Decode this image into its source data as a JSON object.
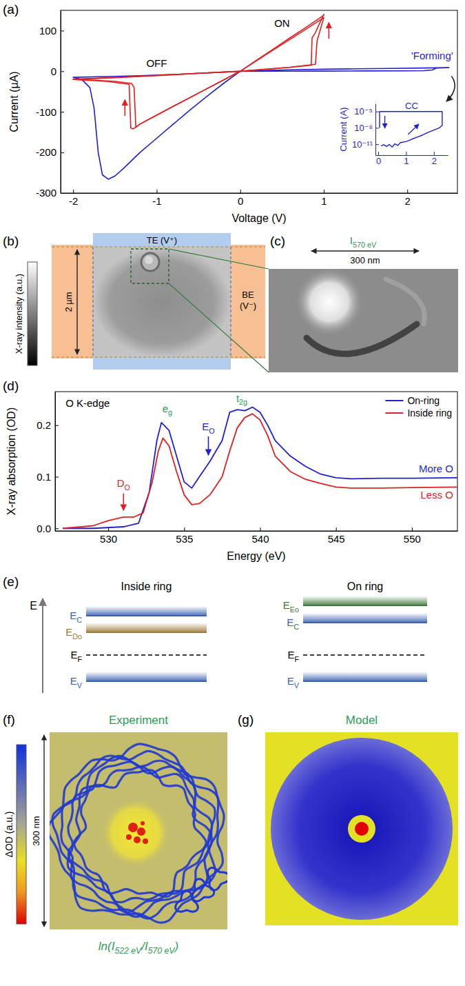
{
  "chart_data": [
    {
      "panel": "(a)",
      "type": "line",
      "x_label": "Voltage (V)",
      "y_label": "Current (µA)",
      "xlim": [
        -2.15,
        2.6
      ],
      "ylim": [
        -300,
        150
      ],
      "xticks": [
        -2,
        -1,
        0,
        1,
        2
      ],
      "yticks": [
        -300,
        -200,
        -100,
        0,
        100
      ],
      "series": [
        {
          "color": "#1f1fd6",
          "x": [
            0,
            0.5,
            1.0,
            1.5,
            2.0,
            2.2,
            2.3,
            2.35,
            2.5,
            2.2,
            1.8,
            1.4,
            1.0,
            0.6,
            0.2,
            0,
            -0.2,
            -0.4,
            -0.6,
            -0.8,
            -1.0,
            -1.2,
            -1.4,
            -1.5,
            -1.58,
            -1.65,
            -1.7,
            -1.75,
            -1.8,
            -1.9,
            -2.0,
            -1.6,
            -1.2,
            -0.8,
            -0.4,
            0
          ],
          "values": [
            0,
            0.2,
            0.4,
            0.7,
            1,
            1.5,
            3,
            8,
            9,
            8,
            7,
            6,
            5,
            3.5,
            1.5,
            0,
            -30,
            -62,
            -95,
            -130,
            -165,
            -200,
            -240,
            -258,
            -266,
            -255,
            -200,
            -90,
            -40,
            -20,
            -15,
            -13,
            -11,
            -8,
            -4,
            0
          ]
        },
        {
          "color": "#e02020",
          "x": [
            0,
            0.2,
            0.4,
            0.6,
            0.8,
            0.85,
            0.86,
            0.9,
            0.95,
            1.0,
            1.0,
            0.8,
            0.6,
            0.4,
            0.2,
            0,
            -0.25,
            -0.5,
            -0.75,
            -1.0,
            -1.2,
            -1.25,
            -1.27,
            -1.3,
            -1.5,
            -1.75,
            -2.0,
            -1.5,
            -1.0,
            -0.5,
            0
          ],
          "values": [
            0,
            3,
            6,
            10,
            14,
            15,
            82,
            95,
            118,
            140,
            138,
            110,
            83,
            55,
            28,
            0,
            -27,
            -54,
            -81,
            -108,
            -130,
            -138,
            -40,
            -30,
            -25,
            -22,
            -20,
            -16,
            -11,
            -5,
            0
          ]
        },
        {
          "color": "#e02020",
          "x": [
            0,
            0.3,
            0.6,
            0.9,
            0.92,
            1.0,
            0.7,
            0.4,
            0,
            -0.4,
            -0.8,
            -1.2,
            -1.28,
            -1.31,
            -1.33,
            -1.6,
            -2.0,
            -1.0,
            0
          ],
          "values": [
            0,
            5,
            10,
            17,
            75,
            132,
            92,
            53,
            0,
            -43,
            -86,
            -130,
            -142,
            -140,
            -32,
            -25,
            -20,
            -10,
            0
          ]
        }
      ],
      "annotations": {
        "on": "ON",
        "off": "OFF",
        "forming": "'Forming'"
      }
    },
    {
      "type": "line",
      "log": "y",
      "y_label": "Current (A)",
      "xlim": [
        -0.1,
        2.5
      ],
      "ylim": [
        1e-13,
        0.0003
      ],
      "xticks": [
        0,
        1,
        2
      ],
      "yticks": [
        {
          "value": 1e-05,
          "label": "10⁻⁵"
        },
        {
          "value": 1e-08,
          "label": "10⁻⁸"
        },
        {
          "value": 1e-11,
          "label": "10⁻¹¹"
        }
      ],
      "series": [
        {
          "color": "#1f1fd6",
          "x": [
            0.1,
            0.2,
            0.3,
            0.4,
            0.5,
            0.6,
            0.7,
            0.8,
            1.0,
            1.2,
            1.4,
            1.6,
            1.8,
            2.0,
            2.2,
            2.3,
            2.3,
            1.5,
            0.5,
            0.05,
            0.05
          ],
          "values": [
            5e-12,
            8e-12,
            4e-12,
            9e-12,
            3e-12,
            1.2e-11,
            6e-12,
            2e-11,
            3e-11,
            8e-11,
            2e-10,
            5e-10,
            1.5e-09,
            4e-09,
            1e-08,
            3e-08,
            1e-05,
            1e-05,
            1e-05,
            1e-05,
            1e-08
          ]
        }
      ],
      "annotations": {
        "cc": "CC"
      }
    },
    {
      "panel": "(b)",
      "type": "image",
      "colorbar_label": "X-ray intensity (a.u.)",
      "top_electrode": "TE (V⁺)",
      "bottom_electrode": "BE (V⁻)",
      "scale_bar": "2 µm"
    },
    {
      "panel": "(c)",
      "type": "image",
      "title": [
        {
          "text": "I"
        },
        {
          "text": "570 eV",
          "sub": true
        }
      ],
      "scale_bar": "300 nm"
    },
    {
      "panel": "(d)",
      "type": "line",
      "x_label": "Energy (eV)",
      "y_label": "X-ray absorption (OD)",
      "xlim": [
        526.5,
        553
      ],
      "ylim": [
        -0.005,
        0.265
      ],
      "xticks": [
        530,
        535,
        540,
        545,
        550
      ],
      "yticks": [
        {
          "value": 0,
          "label": "0.0"
        },
        0.1,
        0.2
      ],
      "legend": "upper right",
      "series": [
        {
          "name": "On-ring",
          "color": "#1f1fd6",
          "x": [
            527,
            529,
            531,
            532,
            532.7,
            533.2,
            533.5,
            534,
            534.5,
            535,
            535.5,
            536,
            536.7,
            537.5,
            538,
            538.5,
            539,
            539.5,
            540,
            540.5,
            541,
            542,
            543,
            544,
            545,
            546,
            548,
            550,
            553
          ],
          "values": [
            0,
            0,
            0.003,
            0.01,
            0.07,
            0.17,
            0.205,
            0.19,
            0.14,
            0.09,
            0.078,
            0.1,
            0.13,
            0.17,
            0.225,
            0.23,
            0.228,
            0.235,
            0.225,
            0.2,
            0.17,
            0.14,
            0.12,
            0.105,
            0.098,
            0.096,
            0.097,
            0.097,
            0.098
          ]
        },
        {
          "name": "Inside ring",
          "color": "#e02020",
          "x": [
            527,
            529,
            530,
            531,
            531.7,
            532.3,
            532.9,
            533.3,
            533.6,
            534,
            534.5,
            535,
            535.5,
            536,
            536.7,
            537.5,
            538,
            538.5,
            539,
            539.5,
            540,
            540.5,
            541,
            542,
            543,
            544,
            545,
            546,
            548,
            550,
            553
          ],
          "values": [
            0,
            0.005,
            0.015,
            0.022,
            0.022,
            0.03,
            0.09,
            0.15,
            0.175,
            0.16,
            0.11,
            0.065,
            0.046,
            0.048,
            0.065,
            0.1,
            0.15,
            0.195,
            0.215,
            0.222,
            0.21,
            0.18,
            0.14,
            0.11,
            0.095,
            0.087,
            0.08,
            0.078,
            0.078,
            0.079,
            0.08
          ]
        }
      ],
      "annotations": [
        {
          "text": "O K-edge",
          "color": "#000000"
        },
        {
          "text": "e",
          "sub": "g",
          "color": "#2e9b57"
        },
        {
          "text": "t",
          "sub": "2g",
          "color": "#2e9b57"
        },
        {
          "text": "E",
          "sub": "O",
          "color": "#1f1fd6"
        },
        {
          "text": "D",
          "sub": "O",
          "color": "#e02020"
        },
        {
          "text": "More O",
          "color": "#1f1fd6"
        },
        {
          "text": "Less O",
          "color": "#e02020"
        }
      ]
    },
    {
      "panel": "(e)",
      "type": "diagram",
      "energy_axis": "E",
      "columns": [
        {
          "title": "Inside ring",
          "levels": [
            {
              "label": "E",
              "sub": "C",
              "color": "#3b62b0",
              "line_style": "solid"
            },
            {
              "label": "E",
              "sub": "Do",
              "color": "#9a7a3a",
              "line_style": "solid"
            },
            {
              "label": "E",
              "sub": "F",
              "color": "#000000",
              "line_style": "dashed"
            },
            {
              "label": "E",
              "sub": "V",
              "color": "#3b62b0",
              "line_style": "solid"
            }
          ]
        },
        {
          "title": "On ring",
          "levels": [
            {
              "label": "E",
              "sub": "Eo",
              "color": "#3f7a3a",
              "line_style": "solid"
            },
            {
              "label": "E",
              "sub": "C",
              "color": "#3b62b0",
              "line_style": "solid"
            },
            {
              "label": "E",
              "sub": "F",
              "color": "#000000",
              "line_style": "dashed"
            },
            {
              "label": "E",
              "sub": "V",
              "color": "#3b62b0",
              "line_style": "solid"
            }
          ]
        }
      ]
    },
    {
      "panel": "(f)",
      "type": "image",
      "title": "Experiment",
      "colorbar_label": "ΔOD (a.u.)",
      "scale_bar": "300 nm",
      "caption": [
        {
          "text": "ln(I"
        },
        {
          "text": "522 eV",
          "sub": true
        },
        {
          "text": "/I"
        },
        {
          "text": "570 eV",
          "sub": true
        },
        {
          "text": ")"
        }
      ]
    },
    {
      "panel": "(g)",
      "type": "image",
      "title": "Model"
    }
  ]
}
